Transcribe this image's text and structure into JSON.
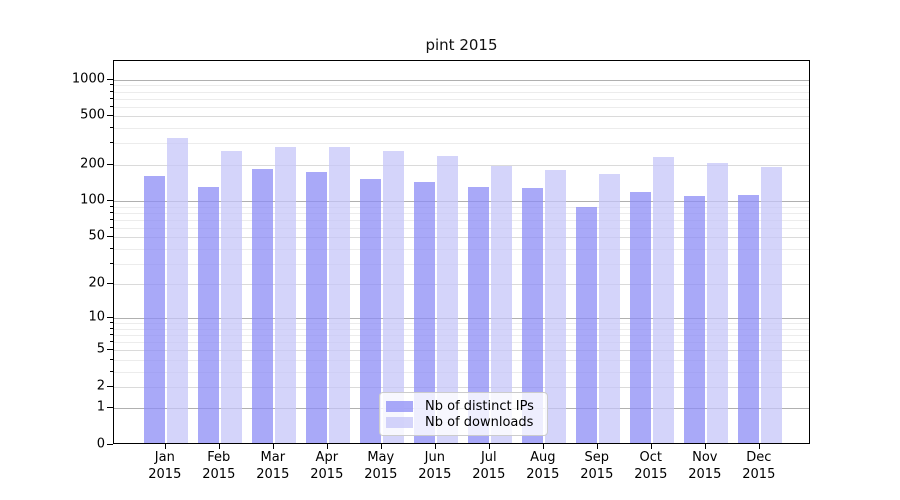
{
  "chart_data": {
    "type": "bar",
    "title": "pint 2015",
    "categories": [
      "Jan",
      "Feb",
      "Mar",
      "Apr",
      "May",
      "Jun",
      "Jul",
      "Aug",
      "Sep",
      "Oct",
      "Nov",
      "Dec"
    ],
    "year_label": "2015",
    "series": [
      {
        "name": "Nb of distinct IPs",
        "color": "#8c8cf5",
        "values": [
          155,
          126,
          177,
          169,
          148,
          138,
          127,
          124,
          86,
          115,
          107,
          109
        ]
      },
      {
        "name": "Nb of downloads",
        "color": "#c6c6f8",
        "values": [
          320,
          250,
          268,
          268,
          251,
          226,
          189,
          174,
          161,
          222,
          200,
          185
        ]
      }
    ],
    "scale": "log1p",
    "ylim": [
      0,
      1430
    ],
    "y_ticks": [
      0,
      1,
      2,
      5,
      10,
      20,
      50,
      100,
      200,
      500,
      1000
    ],
    "y_tick_labels": [
      "0",
      "1",
      "2",
      "5",
      "10",
      "20",
      "50",
      "100",
      "200",
      "500",
      "1000"
    ],
    "major_grid_values": [
      1,
      10,
      100,
      1000
    ],
    "labeled_minor_grid_values": [
      2,
      5,
      20,
      50,
      200,
      500
    ],
    "faint_minor_grid_values": [
      3,
      4,
      6,
      7,
      8,
      9,
      30,
      40,
      60,
      70,
      80,
      90,
      300,
      400,
      600,
      700,
      800,
      900
    ],
    "grid": "on",
    "legend_position": "lower-center",
    "colors": {
      "major_grid": "#b0b0b0",
      "labeled_grid": "#dadada",
      "minor_grid": "#ececec",
      "spine": "#000000",
      "background": "#ffffff",
      "bar_distinct_ips": "#8c8cf5",
      "bar_downloads": "#c6c6f8"
    }
  }
}
